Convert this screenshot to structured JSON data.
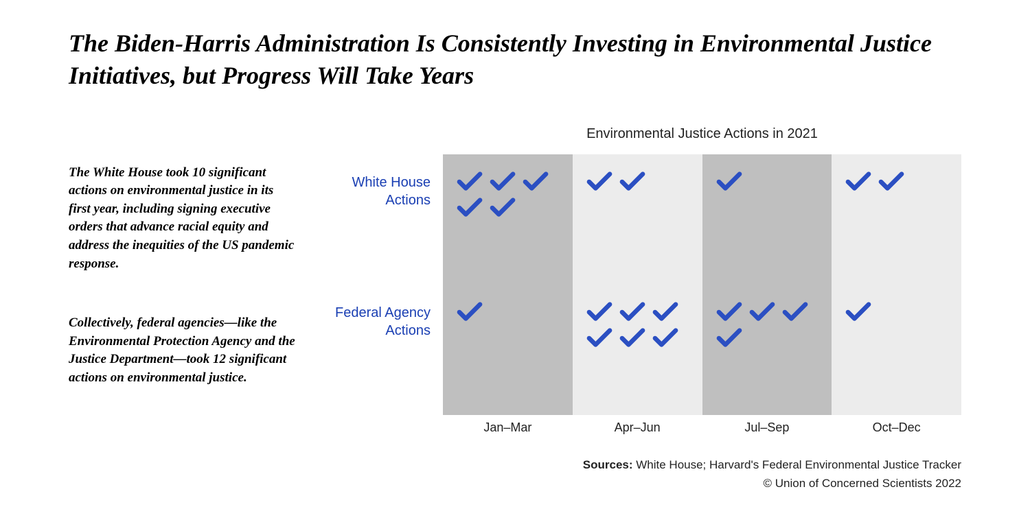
{
  "title": "The Biden-Harris Administration Is Consistently Investing in Environmental Justice Initiatives, but Progress Will Take Years",
  "left_text_1": "The White House took 10 significant actions on environmental justice in its first year, including signing executive orders that advance racial equity and address the inequities of the US pandemic response.",
  "left_text_2": "Collectively, federal agencies—like the Environmental Protection Agency and the Justice Department—took 12 significant actions on environmental justice.",
  "chart": {
    "title": "Environmental Justice Actions in 2021",
    "row_labels": [
      "White House Actions",
      "Federal Agency Actions"
    ],
    "col_labels": [
      "Jan–Mar",
      "Apr–Jun",
      "Jul–Sep",
      "Oct–Dec"
    ],
    "data": [
      [
        5,
        2,
        1,
        2
      ],
      [
        1,
        6,
        4,
        1
      ]
    ],
    "col_bg_colors": [
      "#bfbfbf",
      "#ececec",
      "#bfbfbf",
      "#ececec"
    ],
    "row_label_color": "#1a3fb3",
    "check_color": "#2b4fc2",
    "label_fontsize": 20,
    "title_fontsize": 20,
    "xlabel_color": "#222222"
  },
  "footer": {
    "sources_label": "Sources:",
    "sources_text": " White House; Harvard's Federal Environmental Justice Tracker",
    "copyright": "© Union of Concerned Scientists 2022"
  }
}
